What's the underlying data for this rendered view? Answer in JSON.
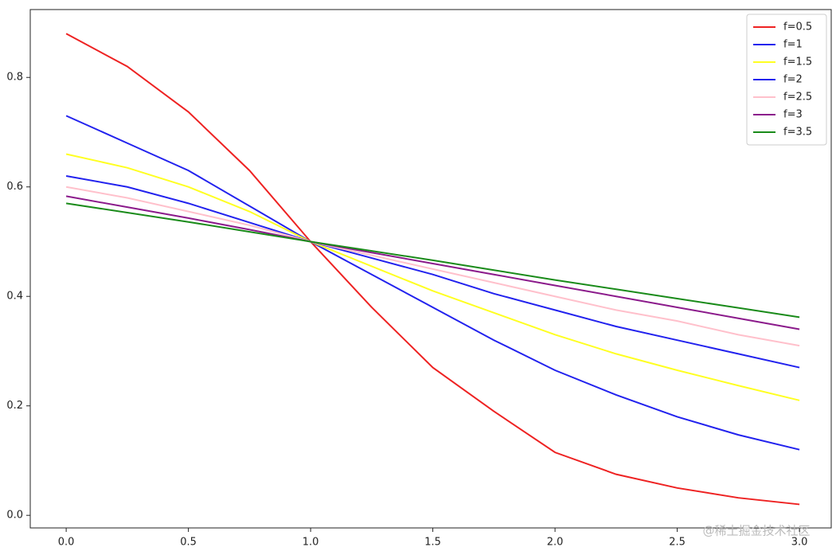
{
  "chart_data": {
    "type": "line",
    "x": [
      0,
      0.25,
      0.5,
      0.75,
      1,
      1.25,
      1.5,
      1.75,
      2,
      2.25,
      2.5,
      2.75,
      3
    ],
    "series": [
      {
        "name": "f=0.5",
        "color": "#ee2222",
        "values": [
          0.88,
          0.82,
          0.737,
          0.63,
          0.5,
          0.38,
          0.27,
          0.19,
          0.115,
          0.075,
          0.05,
          0.032,
          0.02
        ]
      },
      {
        "name": "f=1",
        "color": "#2222ee",
        "values": [
          0.73,
          0.68,
          0.63,
          0.565,
          0.5,
          0.44,
          0.38,
          0.32,
          0.265,
          0.22,
          0.18,
          0.147,
          0.12
        ]
      },
      {
        "name": "f=1.5",
        "color": "#ffff22",
        "values": [
          0.66,
          0.635,
          0.6,
          0.555,
          0.5,
          0.455,
          0.41,
          0.37,
          0.33,
          0.295,
          0.265,
          0.237,
          0.21
        ]
      },
      {
        "name": "f=2",
        "color": "#2222ee",
        "values": [
          0.62,
          0.6,
          0.57,
          0.535,
          0.5,
          0.47,
          0.44,
          0.405,
          0.375,
          0.345,
          0.32,
          0.295,
          0.27
        ]
      },
      {
        "name": "f=2.5",
        "color": "#ffc0cb",
        "values": [
          0.6,
          0.58,
          0.555,
          0.53,
          0.5,
          0.475,
          0.45,
          0.425,
          0.4,
          0.375,
          0.355,
          0.33,
          0.31
        ]
      },
      {
        "name": "f=3",
        "color": "#8b1a8b",
        "values": [
          0.583,
          0.563,
          0.543,
          0.522,
          0.5,
          0.48,
          0.46,
          0.44,
          0.42,
          0.4,
          0.38,
          0.36,
          0.34
        ]
      },
      {
        "name": "f=3.5",
        "color": "#1a8b1a",
        "values": [
          0.57,
          0.553,
          0.536,
          0.518,
          0.5,
          0.483,
          0.466,
          0.448,
          0.43,
          0.413,
          0.396,
          0.379,
          0.362
        ]
      }
    ],
    "xlim": [
      -0.147,
      3.13
    ],
    "ylim": [
      -0.023,
      0.924
    ],
    "xticks": [
      {
        "value": 0,
        "label": "0.0"
      },
      {
        "value": 0.5,
        "label": "0.5"
      },
      {
        "value": 1,
        "label": "1.0"
      },
      {
        "value": 1.5,
        "label": "1.5"
      },
      {
        "value": 2,
        "label": "2.0"
      },
      {
        "value": 2.5,
        "label": "2.5"
      },
      {
        "value": 3,
        "label": "3.0"
      }
    ],
    "yticks": [
      {
        "value": 0,
        "label": "0.0"
      },
      {
        "value": 0.2,
        "label": "0.2"
      },
      {
        "value": 0.4,
        "label": "0.4"
      },
      {
        "value": 0.6,
        "label": "0.6"
      },
      {
        "value": 0.8,
        "label": "0.8"
      }
    ],
    "legend": "upper right",
    "watermark": "@稀土掘金技术社区"
  }
}
